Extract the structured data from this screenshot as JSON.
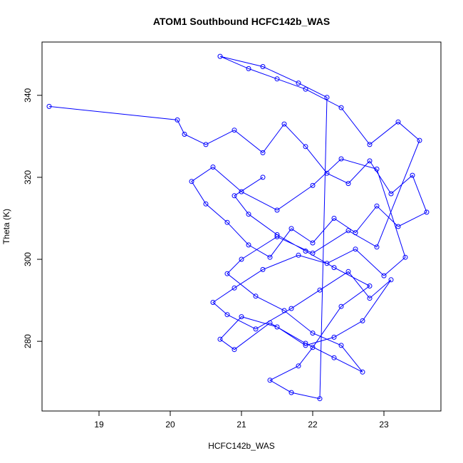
{
  "chart_data": {
    "type": "scatter",
    "title": "ATOM1 Southbound HCFC142b_WAS",
    "xlabel": "HCFC142b_WAS",
    "ylabel": "Theta (K)",
    "xlim": [
      18.2,
      23.8
    ],
    "ylim": [
      263,
      353
    ],
    "xticks": [
      19,
      20,
      21,
      22,
      23
    ],
    "yticks": [
      280,
      300,
      320,
      340
    ],
    "grid": false,
    "color": "#0000ff",
    "marker": "open-circle",
    "connected": true,
    "series": [
      {
        "x": [
          18.3,
          20.1,
          20.2,
          20.5,
          20.9,
          21.3,
          21.6,
          21.9,
          22.2,
          22.5,
          22.8,
          23.1,
          23.4,
          23.6,
          23.2,
          22.9,
          22.6,
          22.3,
          22.0,
          21.7,
          21.4,
          21.1,
          20.8,
          20.5,
          20.3,
          20.6,
          21.0,
          21.5,
          22.0,
          22.4,
          22.9,
          23.3,
          23.0,
          22.6,
          22.2,
          21.8,
          21.3,
          20.9,
          20.6,
          20.8,
          21.2,
          21.7,
          22.1,
          22.5,
          22.8,
          23.1,
          22.7,
          22.3,
          21.9,
          21.5,
          21.0,
          20.7,
          20.9,
          21.4,
          21.9,
          22.3,
          22.7,
          22.4,
          22.0,
          21.6,
          21.2,
          20.8,
          21.0,
          21.5,
          22.0,
          22.5,
          22.9,
          23.5,
          23.2,
          22.8,
          22.4,
          21.9,
          21.5,
          21.1,
          20.7,
          21.3,
          21.8,
          22.2,
          22.1,
          21.7,
          21.4,
          21.8,
          22.0,
          22.4,
          22.8,
          22.3,
          21.9,
          21.5,
          21.1,
          20.9,
          21.3
        ],
        "y": [
          337.3,
          334.0,
          330.5,
          328.0,
          331.5,
          326.0,
          333.0,
          327.5,
          321.0,
          318.5,
          324.0,
          316.0,
          320.5,
          311.5,
          308.0,
          313.0,
          306.5,
          310.0,
          304.0,
          307.5,
          300.5,
          303.5,
          309.0,
          313.5,
          319.0,
          322.5,
          316.5,
          312.0,
          318.0,
          324.5,
          322.0,
          300.5,
          296.0,
          302.5,
          299.0,
          301.0,
          297.5,
          293.0,
          289.5,
          286.5,
          283.0,
          288.0,
          292.5,
          297.0,
          290.5,
          295.0,
          285.0,
          281.0,
          279.0,
          283.5,
          286.0,
          280.5,
          278.0,
          284.5,
          279.5,
          276.0,
          272.5,
          279.0,
          282.0,
          287.5,
          291.0,
          296.5,
          300.0,
          305.5,
          301.5,
          307.0,
          303.0,
          329.0,
          333.5,
          328.0,
          337.0,
          341.5,
          344.0,
          346.5,
          349.5,
          347.0,
          343.0,
          339.5,
          266.0,
          267.5,
          270.5,
          274.0,
          278.5,
          288.5,
          293.5,
          298.0,
          302.0,
          306.0,
          311.0,
          315.5,
          320.0
        ]
      }
    ]
  }
}
